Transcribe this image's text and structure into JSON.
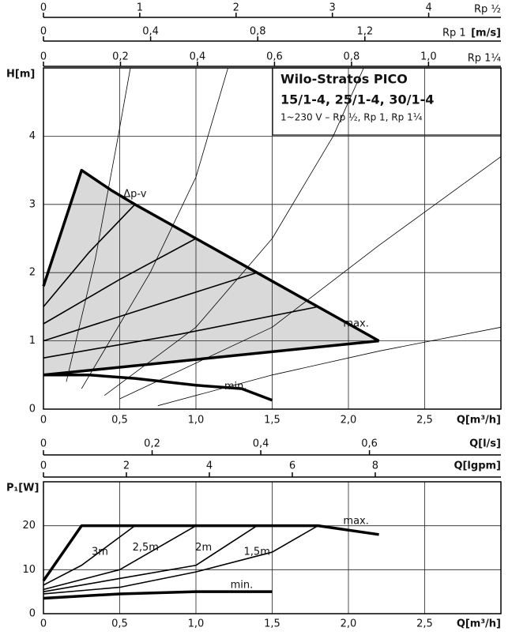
{
  "chart_data": [
    {
      "type": "line",
      "title": "Wilo-Stratos PICO",
      "subtitle": "15/1-4, 25/1-4, 30/1-4",
      "note": "1~230 V – Rp ½, Rp 1, Rp 1¼",
      "x_label": "Q[m³/h]",
      "y_label": "H[m]",
      "xlim": [
        0,
        3
      ],
      "ylim": [
        0,
        5
      ],
      "xticks": [
        0,
        {
          "value": 0.5,
          "label": "0,5"
        },
        {
          "value": 1,
          "label": "1,0"
        },
        {
          "value": 1.5,
          "label": "1,5"
        },
        {
          "value": 2,
          "label": "2,0"
        },
        {
          "value": 2.5,
          "label": "2,5"
        }
      ],
      "yticks": [
        0,
        1,
        2,
        3,
        4
      ],
      "grid": true,
      "fill_color": "#d9d9d9",
      "series": [
        {
          "x": [
            0,
            0.25,
            0.45,
            0.6,
            1.0,
            1.4,
            1.8,
            2.0,
            2.2
          ],
          "values": [
            1.8,
            3.5,
            3.2,
            3.0,
            2.5,
            2.0,
            1.5,
            1.25,
            1.0
          ],
          "color": "#000000",
          "line_width": 3.5
        },
        {
          "x": [
            0,
            2.2
          ],
          "values": [
            0.5,
            1.0
          ],
          "color": "#000000",
          "line_width": 3.5
        },
        {
          "x": [
            0,
            0.3,
            0.6,
            1.0,
            1.3,
            1.5
          ],
          "values": [
            0.5,
            0.5,
            0.45,
            0.35,
            0.3,
            0.13
          ],
          "color": "#000000",
          "line_width": 3.5
        },
        {
          "x": [
            0,
            0.3,
            0.6
          ],
          "values": [
            1.5,
            2.3,
            3.0
          ],
          "color": "#000000",
          "line_width": 1.6
        },
        {
          "x": [
            0,
            0.5,
            1.0
          ],
          "values": [
            1.25,
            1.9,
            2.5
          ],
          "color": "#000000",
          "line_width": 1.6
        },
        {
          "x": [
            0,
            0.7,
            1.4
          ],
          "values": [
            1.0,
            1.5,
            2.0
          ],
          "color": "#000000",
          "line_width": 1.6
        },
        {
          "x": [
            0,
            0.9,
            1.8
          ],
          "values": [
            0.75,
            1.1,
            1.5
          ],
          "color": "#000000",
          "line_width": 1.6
        },
        {
          "x": [
            0.15,
            0.34,
            0.49,
            0.57
          ],
          "values": [
            0.4,
            2.2,
            4.0,
            5.0
          ],
          "color": "#000000",
          "line_width": 0.8
        },
        {
          "x": [
            0.25,
            0.7,
            1.0,
            1.21
          ],
          "values": [
            0.3,
            2.0,
            3.4,
            5.0
          ],
          "color": "#000000",
          "line_width": 0.8
        },
        {
          "x": [
            0.4,
            1.0,
            1.5,
            1.9,
            2.1
          ],
          "values": [
            0.2,
            1.2,
            2.5,
            4.0,
            5.0
          ],
          "color": "#000000",
          "line_width": 0.8
        },
        {
          "x": [
            0.5,
            1.5,
            2.2,
            3.0
          ],
          "values": [
            0.15,
            1.2,
            2.4,
            3.7
          ],
          "color": "#000000",
          "line_width": 0.8
        },
        {
          "x": [
            0.75,
            1.5,
            2.2,
            3.0
          ],
          "values": [
            0.05,
            0.5,
            0.85,
            1.2
          ],
          "color": "#000000",
          "line_width": 0.8
        }
      ],
      "annotations": [
        {
          "text": "Δp-v",
          "x": 0.6,
          "y": 3.15
        },
        {
          "text": "max.",
          "x": 2.05,
          "y": 1.25
        },
        {
          "text": "min.",
          "x": 1.26,
          "y": 0.33
        }
      ],
      "top_axes": [
        {
          "labels": [
            "Rp ½"
          ],
          "xlim": [
            0,
            4.75
          ],
          "ticks": [
            0,
            1,
            2,
            3,
            4
          ]
        },
        {
          "labels": [
            "Rp 1",
            "[m/s]"
          ],
          "xlim": [
            0,
            1.708
          ],
          "ticks": [
            0,
            {
              "value": 0.4,
              "label": "0,4"
            },
            {
              "value": 0.8,
              "label": "0,8"
            },
            {
              "value": 1.2,
              "label": "1,2"
            }
          ]
        },
        {
          "labels": [
            "Rp 1¼"
          ],
          "xlim": [
            0,
            1.188
          ],
          "ticks": [
            0,
            {
              "value": 0.2,
              "label": "0,2"
            },
            {
              "value": 0.4,
              "label": "0,4"
            },
            {
              "value": 0.6,
              "label": "0,6"
            },
            {
              "value": 0.8,
              "label": "0,8"
            },
            {
              "value": 1.0,
              "label": "1,0"
            }
          ]
        }
      ],
      "bottom_axes": [
        {
          "label": "Q[l/s]",
          "xlim": [
            0,
            0.842
          ],
          "ticks": [
            0,
            {
              "value": 0.2,
              "label": "0,2"
            },
            {
              "value": 0.4,
              "label": "0,4"
            },
            {
              "value": 0.6,
              "label": "0,6"
            }
          ]
        },
        {
          "label": "Q[lgpm]",
          "xlim": [
            0,
            11.03
          ],
          "ticks": [
            0,
            2,
            4,
            6,
            8
          ]
        }
      ]
    },
    {
      "type": "line",
      "x_label": "Q[m³/h]",
      "y_label": "P₁[W]",
      "xlim": [
        0,
        3
      ],
      "ylim": [
        0,
        30
      ],
      "xticks": [
        0,
        {
          "value": 0.5,
          "label": "0,5"
        },
        {
          "value": 1,
          "label": "1,0"
        },
        {
          "value": 1.5,
          "label": "1,5"
        },
        {
          "value": 2,
          "label": "2,0"
        },
        {
          "value": 2.5,
          "label": "2,5"
        }
      ],
      "yticks": [
        0,
        10,
        20
      ],
      "grid": true,
      "series": [
        {
          "x": [
            0,
            0.25,
            1.8,
            2.2
          ],
          "values": [
            7.5,
            20,
            20,
            18
          ],
          "color": "#000000",
          "line_width": 3.5
        },
        {
          "x": [
            0,
            0.25,
            0.6
          ],
          "values": [
            6.5,
            11,
            20
          ],
          "color": "#000000",
          "line_width": 1.6
        },
        {
          "x": [
            0,
            0.5,
            1.0
          ],
          "values": [
            5.5,
            10,
            20
          ],
          "color": "#000000",
          "line_width": 1.6
        },
        {
          "x": [
            0,
            0.5,
            1.0,
            1.4
          ],
          "values": [
            5,
            8,
            11,
            20
          ],
          "color": "#000000",
          "line_width": 1.6
        },
        {
          "x": [
            0,
            0.5,
            1.0,
            1.5,
            1.8
          ],
          "values": [
            4.5,
            6,
            9.5,
            14,
            20
          ],
          "color": "#000000",
          "line_width": 1.6
        },
        {
          "x": [
            0,
            0.5,
            1.0,
            1.5
          ],
          "values": [
            3.5,
            4.5,
            5,
            5
          ],
          "color": "#000000",
          "line_width": 3.5
        }
      ],
      "annotations": [
        {
          "text": "3m",
          "x": 0.37,
          "y": 14
        },
        {
          "text": "2,5m",
          "x": 0.67,
          "y": 15
        },
        {
          "text": "2m",
          "x": 1.05,
          "y": 15
        },
        {
          "text": "1,5m",
          "x": 1.4,
          "y": 14
        },
        {
          "text": "max.",
          "x": 2.05,
          "y": 21
        },
        {
          "text": "min.",
          "x": 1.3,
          "y": 6.5
        }
      ]
    }
  ]
}
